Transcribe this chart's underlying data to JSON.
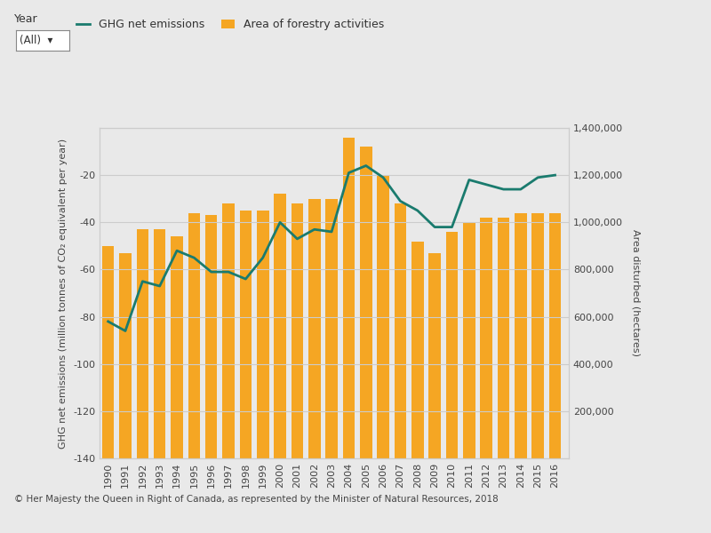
{
  "years": [
    1990,
    1991,
    1992,
    1993,
    1994,
    1995,
    1996,
    1997,
    1998,
    1999,
    2000,
    2001,
    2002,
    2003,
    2004,
    2005,
    2006,
    2007,
    2008,
    2009,
    2010,
    2011,
    2012,
    2013,
    2014,
    2015,
    2016
  ],
  "ghg_net_emissions": [
    -82,
    -86,
    -65,
    -67,
    -52,
    -55,
    -61,
    -61,
    -64,
    -55,
    -40,
    -47,
    -43,
    -44,
    -19,
    -16,
    -21,
    -31,
    -35,
    -42,
    -42,
    -22,
    -24,
    -26,
    -26,
    -21,
    -20
  ],
  "area_forestry": [
    900000,
    870000,
    970000,
    970000,
    940000,
    1040000,
    1030000,
    1080000,
    1050000,
    1050000,
    1120000,
    1080000,
    1100000,
    1100000,
    1360000,
    1320000,
    1200000,
    1080000,
    920000,
    870000,
    960000,
    1000000,
    1020000,
    1020000,
    1040000,
    1040000,
    1040000
  ],
  "bar_color": "#F5A623",
  "line_color": "#1A7B6E",
  "background_color": "#FFFFFF",
  "outer_bg_color": "#E9E9E9",
  "left_ylabel": "GHG net emissions (million tonnes of CO₂ equivalent per year)",
  "right_ylabel": "Area disturbed (hectares)",
  "legend_ghg": "GHG net emissions",
  "legend_area": "Area of forestry activities",
  "ylim_left": [
    -140,
    0
  ],
  "ylim_right": [
    0,
    1400000
  ],
  "yticks_left": [
    0,
    -20,
    -40,
    -60,
    -80,
    -100,
    -120,
    -140
  ],
  "yticks_right": [
    0,
    200000,
    400000,
    600000,
    800000,
    1000000,
    1200000,
    1400000
  ],
  "footer_text": "© Her Majesty the Queen in Right of Canada, as represented by the Minister of Natural Resources, 2018",
  "header_text": "Year",
  "dropdown_text": "(All)  ▾",
  "line_width": 2.0,
  "bar_width": 0.7,
  "xlim": [
    1989.5,
    2016.8
  ]
}
